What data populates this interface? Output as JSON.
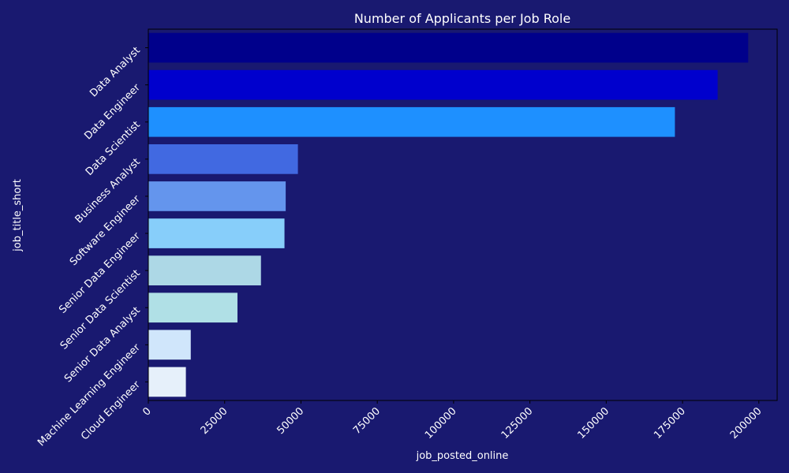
{
  "chart_data": {
    "type": "bar",
    "orientation": "horizontal",
    "title": "Number of Applicants per Job Role",
    "xlabel": "job_posted_online",
    "ylabel": "job_title_short",
    "categories": [
      "Data Analyst",
      "Data Engineer",
      "Data Scientist",
      "Business Analyst",
      "Software Engineer",
      "Senior Data Engineer",
      "Senior Data Scientist",
      "Senior Data Analyst",
      "Machine Learning Engineer",
      "Cloud Engineer"
    ],
    "values": [
      196500,
      186500,
      172500,
      49000,
      45000,
      44600,
      36900,
      29200,
      13900,
      12300
    ],
    "bar_colors": [
      "#00008b",
      "#0000cd",
      "#1e90ff",
      "#4169e1",
      "#6495ed",
      "#87cefa",
      "#add8e6",
      "#b0e0e6",
      "#d0e6fb",
      "#e6f0fa"
    ],
    "xlim": [
      0,
      206000
    ],
    "xticks": [
      0,
      25000,
      50000,
      75000,
      100000,
      125000,
      150000,
      175000,
      200000
    ],
    "grid": false,
    "colors": {
      "background": "#191970",
      "axis": "#000000",
      "text": "#ffffff"
    }
  }
}
